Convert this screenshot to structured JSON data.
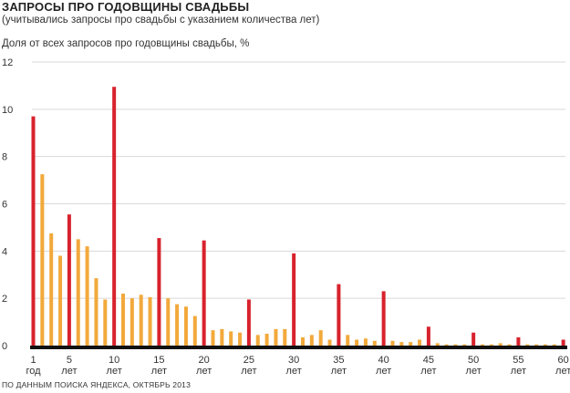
{
  "title": "ЗАПРОСЫ ПРО ГОДОВЩИНЫ СВАДЬБЫ",
  "subtitle": "(учитывались запросы про свадьбы с указанием количества лет)",
  "source": "ПО ДАННЫМ ПОИСКА ЯНДЕКСА, ОКТЯБРЬ 2013",
  "colors": {
    "highlight": "#d8222d",
    "regular": "#f2a93b",
    "grid": "#d9d9d9",
    "baseline": "#111111"
  },
  "chart_data": {
    "type": "bar",
    "ylabel": "Доля от всех запросов про годовщины свадьбы, %",
    "ylim": [
      0,
      12
    ],
    "yticks": [
      0,
      2,
      4,
      6,
      8,
      10,
      12
    ],
    "grid": true,
    "x": [
      1,
      2,
      3,
      4,
      5,
      6,
      7,
      8,
      9,
      10,
      11,
      12,
      13,
      14,
      15,
      16,
      17,
      18,
      19,
      20,
      21,
      22,
      23,
      24,
      25,
      26,
      27,
      28,
      29,
      30,
      31,
      32,
      33,
      34,
      35,
      36,
      37,
      38,
      39,
      40,
      41,
      42,
      43,
      44,
      45,
      46,
      47,
      48,
      49,
      50,
      51,
      52,
      53,
      54,
      55,
      56,
      57,
      58,
      59,
      60
    ],
    "values": [
      9.7,
      7.25,
      4.75,
      3.8,
      5.55,
      4.5,
      4.2,
      2.85,
      1.95,
      10.95,
      2.2,
      2.0,
      2.15,
      2.05,
      4.55,
      2.0,
      1.75,
      1.65,
      1.25,
      4.45,
      0.65,
      0.7,
      0.6,
      0.55,
      1.95,
      0.45,
      0.5,
      0.7,
      0.7,
      3.9,
      0.35,
      0.45,
      0.65,
      0.25,
      2.6,
      0.45,
      0.25,
      0.3,
      0.2,
      2.3,
      0.2,
      0.15,
      0.15,
      0.25,
      0.8,
      0.1,
      0.05,
      0.05,
      0.05,
      0.55,
      0.05,
      0.05,
      0.1,
      0.05,
      0.35,
      0.05,
      0.05,
      0.05,
      0.05,
      0.25
    ],
    "highlighted_x": [
      1,
      5,
      10,
      15,
      20,
      25,
      30,
      35,
      40,
      45,
      50,
      55,
      60
    ],
    "tick_labels": [
      {
        "x": 1,
        "num": "1",
        "unit": "год"
      },
      {
        "x": 5,
        "num": "5",
        "unit": "лет"
      },
      {
        "x": 10,
        "num": "10",
        "unit": "лет"
      },
      {
        "x": 15,
        "num": "15",
        "unit": "лет"
      },
      {
        "x": 20,
        "num": "20",
        "unit": "лет"
      },
      {
        "x": 25,
        "num": "25",
        "unit": "лет"
      },
      {
        "x": 30,
        "num": "30",
        "unit": "лет"
      },
      {
        "x": 35,
        "num": "35",
        "unit": "лет"
      },
      {
        "x": 40,
        "num": "40",
        "unit": "лет"
      },
      {
        "x": 45,
        "num": "45",
        "unit": "лет"
      },
      {
        "x": 50,
        "num": "50",
        "unit": "лет"
      },
      {
        "x": 55,
        "num": "55",
        "unit": "лет"
      },
      {
        "x": 60,
        "num": "60",
        "unit": "лет"
      }
    ]
  }
}
